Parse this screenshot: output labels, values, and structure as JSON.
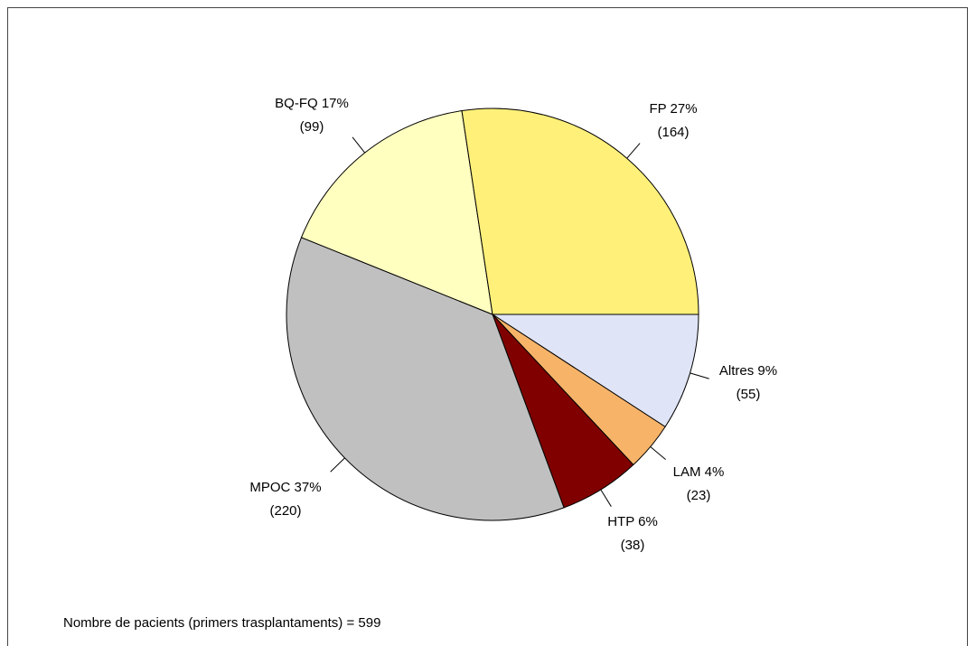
{
  "chart_data": {
    "type": "pie",
    "categories": [
      "Altres  9%",
      "LAM  4%",
      "HTP  6%",
      "MPOC  37%",
      "BQ-FQ  17%",
      "FP  27%"
    ],
    "values": [
      55,
      23,
      38,
      220,
      99,
      164
    ],
    "value_labels": [
      "(55)",
      "(23)",
      "(38)",
      "(220)",
      "(99)",
      "(164)"
    ],
    "colors": [
      "#dfe4f6",
      "#f7b469",
      "#800000",
      "#c0c0c0",
      "#ffffc0",
      "#fff07a"
    ],
    "footnote": "Nombre de pacients (primers trasplantaments) = 599"
  }
}
